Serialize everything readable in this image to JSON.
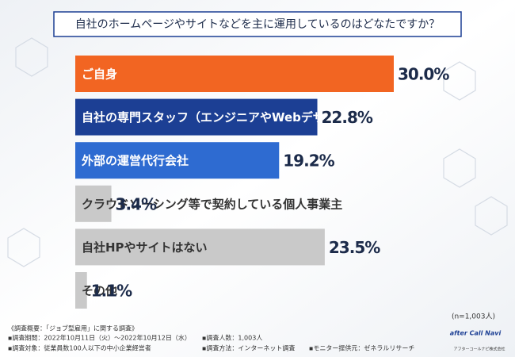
{
  "chart_data": {
    "type": "hbar",
    "title": "自社のホームページやサイトなどを主に運用しているのはどなたですか？",
    "categories": [
      "ご自身",
      "自社の専門スタッフ（エンジニアやWebデザイナーなど）",
      "外部の運営代行会社",
      "クラウドソーシング等で契約している個人事業主",
      "自社HPやサイトはない",
      "その他"
    ],
    "values": [
      30.0,
      22.8,
      19.2,
      3.4,
      23.5,
      1.1
    ],
    "value_labels": [
      "30.0%",
      "22.8%",
      "19.2%",
      "3.4%",
      "23.5%",
      "1.1%"
    ],
    "colors": [
      "#f26522",
      "#1c3f94",
      "#2e6bd1",
      "#c9c9c9",
      "#c9c9c9",
      "#c9c9c9"
    ],
    "label_colors": [
      "#ffffff",
      "#ffffff",
      "#ffffff",
      "#333333",
      "#333333",
      "#333333"
    ],
    "xlim": [
      0,
      30
    ],
    "sample_size": "(n=1,003人)",
    "survey_title": "《調査概要：「ジョブ型雇用」に関する調査》",
    "footnotes": [
      "▪調査期間：2022年10月11日（火）〜2022年10月12日（水）",
      "▪調査人数：1,003人",
      "▪調査対象：従業員数100人以下の中小企業経営者",
      "▪調査方法：インターネット調査",
      "▪モニター提供元：ゼネラルリサーチ"
    ],
    "logo": "after Call Navi",
    "logo_company": "アフターコールナビ株式会社"
  }
}
